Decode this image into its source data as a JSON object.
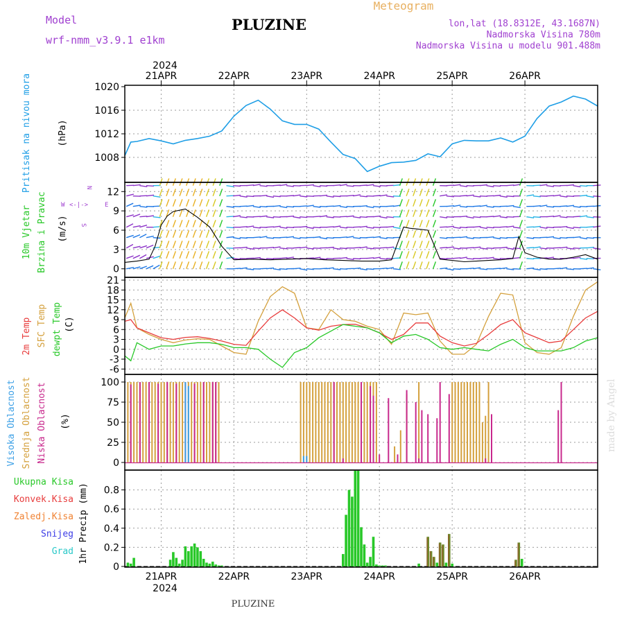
{
  "header": {
    "model_label": "Model",
    "model_name": "wrf-nmm_v3.9.1 e1km",
    "location": "PLUZINE",
    "meteogram": "Meteogram",
    "lonlat": "lon,lat (18.8312E, 43.1687N)",
    "elevation": "Nadmorska Visina 780m",
    "model_elevation": "Nadmorska Visina u modelu 901.488m",
    "year": "2024",
    "footer": "PLUZINE",
    "credit": "made by Angel"
  },
  "days": [
    "21APR",
    "22APR",
    "23APR",
    "24APR",
    "25APR",
    "26APR"
  ],
  "colors": {
    "pressure": "#1e9ee6",
    "t2m": "#e83c3c",
    "sfc": "#d4a03c",
    "dew": "#28c828",
    "high_cloud": "#3ca0e6",
    "mid_cloud": "#d4a03c",
    "low_cloud": "#c8288c",
    "total_precip": "#28c828",
    "conv_precip": "#e83c3c",
    "frz_precip": "#f08232",
    "snow": "#3c3ce6",
    "graupel": "#28c8c8",
    "wind_purple": "#8c32c8",
    "wind_blue": "#1e78e6"
  },
  "panels": {
    "pressure": {
      "label": "Pritisak na nivou mora",
      "unit": "(hPa)"
    },
    "wind": {
      "label1": "10m Vjetar",
      "label2": "Brzina i Pravac",
      "unit": "(m/s)",
      "compass_n": "N",
      "compass_s": "S",
      "compass_w": "W",
      "compass_e": "E"
    },
    "temp": {
      "label1": "2m Temp",
      "label2": "SFC Temp",
      "label3": "dewpt Temp",
      "unit": "(C)"
    },
    "cloud": {
      "label1": "Visoka Oblacnost",
      "label2": "Srednja Oblacnost",
      "label3": "Niska Oblacnost",
      "unit": "(%)"
    },
    "precip": {
      "label1": "Ukupna Kisa",
      "label2": "Konvek.Kisa",
      "label3": "Zaledj.Kisa",
      "label4": "Snijeg",
      "label5": "Grad",
      "unit": "1hr Precip (mm)"
    }
  },
  "chart_data": [
    {
      "type": "line",
      "title": "Pritisak na nivou mora",
      "ylabel": "(hPa)",
      "x_range_hours": [
        -12,
        144
      ],
      "ylim": [
        1004,
        1020
      ],
      "yticks": [
        1008,
        1012,
        1016,
        1020
      ],
      "series": [
        {
          "name": "Pritisak na nivou mora",
          "x": [
            -12,
            -10,
            -8,
            -4,
            0,
            4,
            8,
            12,
            16,
            20,
            24,
            28,
            32,
            36,
            40,
            44,
            48,
            52,
            56,
            60,
            64,
            68,
            72,
            76,
            80,
            84,
            88,
            92,
            96,
            100,
            104,
            108,
            112,
            116,
            120,
            124,
            128,
            132,
            136,
            140,
            144
          ],
          "values": [
            1008.3,
            1010.6,
            1010.7,
            1011.2,
            1010.8,
            1010.3,
            1010.9,
            1011.2,
            1011.6,
            1012.5,
            1015.0,
            1016.8,
            1017.7,
            1016.2,
            1014.2,
            1013.6,
            1013.6,
            1012.8,
            1010.6,
            1008.5,
            1007.8,
            1005.6,
            1006.5,
            1007.1,
            1007.2,
            1007.5,
            1008.6,
            1008.1,
            1010.3,
            1010.9,
            1010.8,
            1010.8,
            1011.3,
            1010.6,
            1011.6,
            1014.6,
            1016.7,
            1017.4,
            1018.4,
            1017.9,
            1016.7
          ]
        }
      ]
    },
    {
      "type": "line",
      "title": "10m Vjetar Brzina i Pravac",
      "ylabel": "(m/s)",
      "x_range_hours": [
        -12,
        144
      ],
      "ylim": [
        -1,
        13
      ],
      "yticks": [
        0,
        3,
        6,
        9,
        12
      ],
      "series": [
        {
          "name": "Brzina",
          "x": [
            -12,
            -8,
            -4,
            -2,
            0,
            2,
            4,
            8,
            12,
            16,
            20,
            24,
            30,
            36,
            42,
            48,
            54,
            60,
            66,
            72,
            76,
            78,
            80,
            82,
            84,
            88,
            92,
            96,
            100,
            104,
            108,
            112,
            116,
            118,
            120,
            124,
            128,
            132,
            136,
            140,
            144
          ],
          "values": [
            1.0,
            1.2,
            1.5,
            3.5,
            6.8,
            8.2,
            8.9,
            9.3,
            8.0,
            6.5,
            3.5,
            1.4,
            1.5,
            1.4,
            1.5,
            1.6,
            1.4,
            1.3,
            1.2,
            1.2,
            1.4,
            4.0,
            6.5,
            6.3,
            6.2,
            6.0,
            1.5,
            1.3,
            1.1,
            1.2,
            1.3,
            1.4,
            1.6,
            5.0,
            2.5,
            1.8,
            1.5,
            1.5,
            1.8,
            2.2,
            1.5
          ]
        }
      ]
    },
    {
      "type": "line",
      "title": "2m Temp / SFC Temp / dewpt Temp",
      "ylabel": "(C)",
      "x_range_hours": [
        -12,
        144
      ],
      "ylim": [
        -7,
        21
      ],
      "yticks": [
        -6,
        -3,
        0,
        3,
        6,
        9,
        12,
        15,
        18,
        21
      ],
      "series": [
        {
          "name": "2m Temp",
          "x": [
            -12,
            -10,
            -8,
            -4,
            0,
            4,
            8,
            12,
            16,
            20,
            24,
            28,
            32,
            36,
            40,
            44,
            48,
            52,
            56,
            60,
            64,
            68,
            72,
            76,
            80,
            84,
            88,
            92,
            96,
            100,
            104,
            108,
            112,
            116,
            120,
            124,
            128,
            132,
            136,
            140,
            144
          ],
          "values": [
            8.5,
            9.0,
            6.5,
            5.0,
            3.5,
            3.0,
            3.6,
            3.8,
            3.3,
            2.5,
            1.5,
            1.2,
            5.5,
            9.5,
            12.0,
            9.5,
            6.5,
            5.8,
            7.0,
            7.5,
            7.6,
            6.5,
            5.0,
            3.0,
            4.5,
            8.0,
            8.0,
            4.0,
            2.0,
            1.0,
            1.8,
            4.5,
            7.5,
            9.0,
            5.0,
            3.5,
            2.0,
            2.5,
            6.0,
            9.5,
            11.5
          ]
        },
        {
          "name": "SFC Temp",
          "x": [
            -12,
            -10,
            -8,
            -4,
            0,
            4,
            8,
            12,
            16,
            20,
            24,
            28,
            32,
            36,
            40,
            44,
            48,
            52,
            56,
            60,
            64,
            68,
            72,
            76,
            80,
            84,
            88,
            92,
            96,
            100,
            104,
            108,
            112,
            116,
            120,
            124,
            128,
            132,
            136,
            140,
            144
          ],
          "values": [
            9.5,
            14.0,
            6.5,
            4.5,
            3.0,
            2.0,
            2.8,
            3.2,
            3.0,
            1.0,
            -1.0,
            -1.5,
            8.5,
            16.0,
            19.0,
            17.0,
            6.5,
            6.0,
            12.0,
            9.0,
            8.5,
            7.0,
            6.0,
            1.5,
            11.0,
            10.5,
            11.0,
            2.5,
            -1.5,
            -1.5,
            1.5,
            10.0,
            17.0,
            16.5,
            2.0,
            -1.0,
            -1.5,
            0.5,
            10.0,
            18.0,
            20.5
          ]
        },
        {
          "name": "dewpt Temp",
          "x": [
            -12,
            -10,
            -8,
            -4,
            0,
            4,
            8,
            12,
            16,
            20,
            24,
            28,
            32,
            36,
            40,
            44,
            48,
            52,
            56,
            60,
            64,
            68,
            72,
            76,
            80,
            84,
            88,
            92,
            96,
            100,
            104,
            108,
            112,
            116,
            120,
            124,
            128,
            132,
            136,
            140,
            144
          ],
          "values": [
            -2.0,
            -3.5,
            2.0,
            0.0,
            1.0,
            1.0,
            1.6,
            2.0,
            2.0,
            1.5,
            0.5,
            0.5,
            0.0,
            -3.0,
            -5.5,
            -1.0,
            0.5,
            3.5,
            5.5,
            7.5,
            7.0,
            6.5,
            5.0,
            2.0,
            4.0,
            4.5,
            3.0,
            0.5,
            0.0,
            0.5,
            0.0,
            -0.5,
            1.5,
            3.0,
            0.5,
            -0.5,
            -0.5,
            -0.5,
            0.5,
            2.5,
            3.5
          ]
        }
      ]
    },
    {
      "type": "bar",
      "title": "Visoka / Srednja / Niska Oblacnost",
      "ylabel": "(%)",
      "x_range_hours": [
        -12,
        144
      ],
      "ylim": [
        0,
        100
      ],
      "yticks": [
        0,
        25,
        50,
        75,
        100
      ],
      "series": [
        {
          "name": "Srednja Oblacnost",
          "x": [
            -11,
            -10,
            -9,
            -8,
            -7,
            -6,
            -5,
            -4,
            -3,
            -2,
            -1,
            0,
            1,
            2,
            3,
            4,
            5,
            6,
            7,
            8,
            9,
            10,
            11,
            12,
            13,
            14,
            15,
            16,
            17,
            18,
            19,
            46,
            47,
            48,
            49,
            50,
            51,
            52,
            53,
            54,
            55,
            56,
            57,
            58,
            59,
            60,
            61,
            62,
            63,
            64,
            65,
            66,
            67,
            68,
            69,
            70,
            71,
            77,
            79,
            81,
            85,
            96,
            97,
            98,
            99,
            100,
            101,
            102,
            103,
            104,
            105,
            106,
            107,
            108
          ],
          "values": [
            100,
            100,
            100,
            100,
            100,
            100,
            100,
            100,
            100,
            100,
            100,
            100,
            100,
            100,
            100,
            100,
            100,
            100,
            100,
            100,
            100,
            100,
            100,
            100,
            100,
            100,
            100,
            100,
            100,
            100,
            100,
            100,
            100,
            100,
            100,
            100,
            100,
            100,
            100,
            100,
            100,
            100,
            100,
            100,
            100,
            100,
            100,
            100,
            100,
            100,
            100,
            100,
            100,
            100,
            100,
            100,
            100,
            20,
            40,
            85,
            100,
            100,
            100,
            100,
            100,
            100,
            100,
            100,
            100,
            100,
            100,
            50,
            58,
            100
          ]
        },
        {
          "name": "Niska Oblacnost",
          "x": [
            -10,
            -7,
            -4,
            -1,
            2,
            5,
            8,
            11,
            14,
            17,
            18,
            57,
            60,
            66,
            69,
            70,
            72,
            75,
            78,
            81,
            84,
            85,
            86,
            88,
            91,
            92,
            95,
            107,
            109,
            131,
            132
          ],
          "values": [
            97,
            100,
            100,
            98,
            100,
            98,
            100,
            98,
            100,
            100,
            100,
            100,
            5,
            100,
            95,
            83,
            10,
            80,
            10,
            90,
            75,
            5,
            65,
            60,
            55,
            100,
            85,
            5,
            60,
            65,
            100
          ]
        },
        {
          "name": "Visoka Oblacnost",
          "x": [
            8,
            9,
            47,
            48
          ],
          "values": [
            100,
            95,
            8,
            8
          ]
        }
      ]
    },
    {
      "type": "bar",
      "title": "1hr Precip",
      "ylabel": "1hr Precip (mm)",
      "x_range_hours": [
        -12,
        144
      ],
      "ylim": [
        0,
        1.0
      ],
      "yticks": [
        0,
        0.2,
        0.4,
        0.6,
        0.8
      ],
      "series": [
        {
          "name": "Ukupna Kisa",
          "x": [
            -11,
            -10,
            -9,
            3,
            4,
            5,
            6,
            7,
            8,
            9,
            10,
            11,
            12,
            13,
            14,
            15,
            16,
            17,
            18,
            19,
            20,
            60,
            61,
            62,
            63,
            64,
            65,
            66,
            67,
            68,
            69,
            70,
            71,
            72,
            73,
            74,
            85,
            88,
            89,
            90,
            91,
            92,
            93,
            94,
            95,
            96,
            117,
            118,
            119
          ],
          "values": [
            0.04,
            0.03,
            0.09,
            0.07,
            0.15,
            0.09,
            0.03,
            0.07,
            0.21,
            0.16,
            0.21,
            0.24,
            0.2,
            0.16,
            0.08,
            0.04,
            0.03,
            0.05,
            0.02,
            0.01,
            0.01,
            0.13,
            0.54,
            0.8,
            0.73,
            1.0,
            1.0,
            0.41,
            0.23,
            0.04,
            0.1,
            0.31,
            0.02,
            0.01,
            0.01,
            0.01,
            0.03,
            0.31,
            0.16,
            0.1,
            0.04,
            0.25,
            0.23,
            0.04,
            0.34,
            0.03,
            0.07,
            0.25,
            0.08
          ]
        },
        {
          "name": "Konvek.Kisa",
          "x": [
            88,
            89,
            90,
            92,
            93,
            95,
            117,
            118
          ],
          "values": [
            0.3,
            0.16,
            0.1,
            0.24,
            0.22,
            0.33,
            0.06,
            0.24
          ]
        }
      ]
    }
  ]
}
